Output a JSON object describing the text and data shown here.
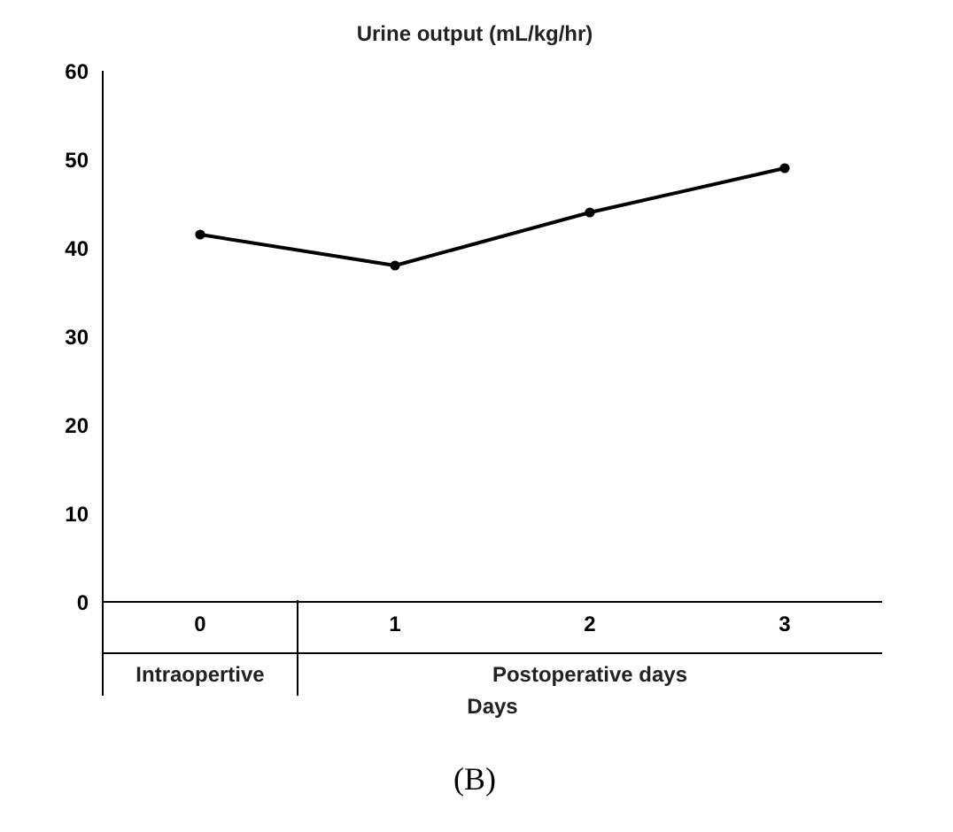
{
  "chart_data": {
    "type": "line",
    "title": "Urine output (mL/kg/hr)",
    "xlabel": "Days",
    "categories": [
      "0",
      "1",
      "2",
      "3"
    ],
    "series": [
      {
        "color": "#000000",
        "values": [
          41.5,
          38,
          44,
          49
        ]
      }
    ],
    "ylim": [
      0,
      60
    ],
    "yticks": [
      0,
      10,
      20,
      30,
      40,
      50,
      60
    ],
    "grid": false,
    "legend": false,
    "marker": "circle",
    "line_style": "solid",
    "annotations": [
      "Intraopertive",
      "Postoperative days",
      "(B)"
    ]
  }
}
